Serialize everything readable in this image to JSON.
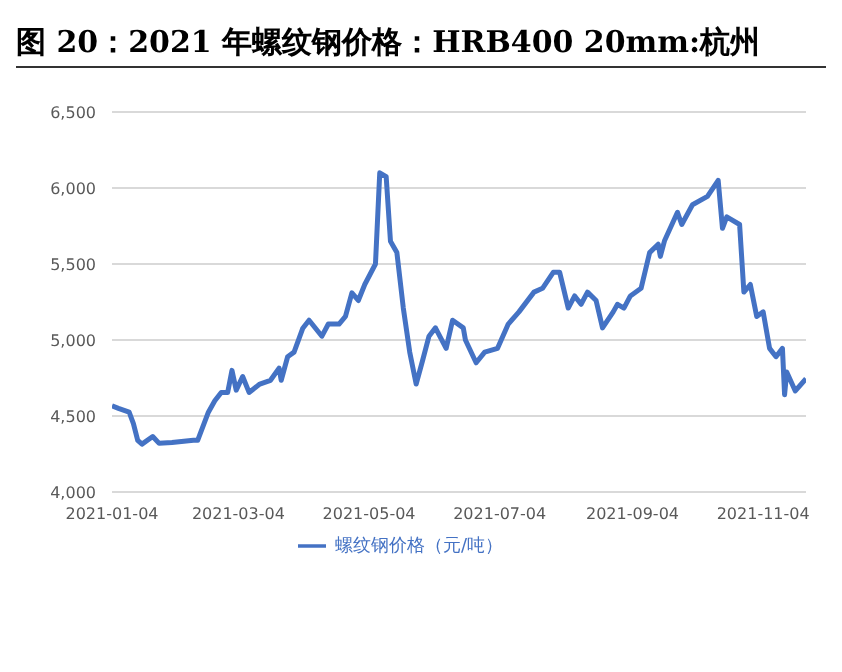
{
  "chart_data": {
    "type": "line",
    "title": "图 20：2021 年螺纹钢价格：HRB400 20mm:杭州",
    "x": [
      "2021-01-04",
      "2021-01-07",
      "2021-01-12",
      "2021-01-14",
      "2021-01-16",
      "2021-01-18",
      "2021-01-23",
      "2021-01-26",
      "2021-02-01",
      "2021-02-11",
      "2021-02-13",
      "2021-02-18",
      "2021-02-21",
      "2021-02-24",
      "2021-02-27",
      "2021-03-01",
      "2021-03-03",
      "2021-03-06",
      "2021-03-09",
      "2021-03-14",
      "2021-03-19",
      "2021-03-23",
      "2021-03-24",
      "2021-03-27",
      "2021-03-30",
      "2021-04-03",
      "2021-04-06",
      "2021-04-12",
      "2021-04-15",
      "2021-04-20",
      "2021-04-23",
      "2021-04-26",
      "2021-04-29",
      "2021-05-02",
      "2021-05-07",
      "2021-05-09",
      "2021-05-12",
      "2021-05-14",
      "2021-05-17",
      "2021-05-20",
      "2021-05-23",
      "2021-05-26",
      "2021-05-29",
      "2021-06-01",
      "2021-06-04",
      "2021-06-09",
      "2021-06-12",
      "2021-06-17",
      "2021-06-18",
      "2021-06-23",
      "2021-06-27",
      "2021-07-03",
      "2021-07-08",
      "2021-07-13",
      "2021-07-20",
      "2021-07-24",
      "2021-07-29",
      "2021-08-01",
      "2021-08-05",
      "2021-08-08",
      "2021-08-11",
      "2021-08-14",
      "2021-08-18",
      "2021-08-21",
      "2021-08-26",
      "2021-08-28",
      "2021-08-31",
      "2021-09-03",
      "2021-09-08",
      "2021-09-12",
      "2021-09-16",
      "2021-09-17",
      "2021-09-19",
      "2021-09-25",
      "2021-09-27",
      "2021-10-02",
      "2021-10-09",
      "2021-10-14",
      "2021-10-16",
      "2021-10-18",
      "2021-10-24",
      "2021-10-26",
      "2021-10-29",
      "2021-11-01",
      "2021-11-04",
      "2021-11-07",
      "2021-11-10",
      "2021-11-13",
      "2021-11-14",
      "2021-11-15",
      "2021-11-19",
      "2021-11-24"
    ],
    "series": [
      {
        "name": "螺纹钢价格（元/吨）",
        "color": "#4472c4",
        "values": [
          4567,
          4550,
          4525,
          4450,
          4340,
          4315,
          4365,
          4320,
          4325,
          4340,
          4340,
          4525,
          4600,
          4655,
          4655,
          4800,
          4670,
          4760,
          4655,
          4710,
          4735,
          4815,
          4735,
          4890,
          4920,
          5075,
          5130,
          5025,
          5105,
          5105,
          5155,
          5310,
          5260,
          5365,
          5500,
          6100,
          6075,
          5650,
          5575,
          5210,
          4920,
          4710,
          4865,
          5025,
          5080,
          4945,
          5130,
          5080,
          5000,
          4850,
          4920,
          4945,
          5105,
          5185,
          5315,
          5340,
          5445,
          5445,
          5210,
          5290,
          5235,
          5315,
          5260,
          5080,
          5185,
          5235,
          5210,
          5290,
          5340,
          5575,
          5630,
          5550,
          5655,
          5840,
          5760,
          5890,
          5945,
          6050,
          5735,
          5810,
          5760,
          5315,
          5365,
          5155,
          5185,
          4945,
          4890,
          4945,
          4640,
          4790,
          4665,
          4745
        ]
      }
    ],
    "xlim": [
      "2021-01-04",
      "2021-11-24"
    ],
    "xticks": [
      "2021-01-04",
      "2021-03-04",
      "2021-05-04",
      "2021-07-04",
      "2021-09-04",
      "2021-11-04"
    ],
    "ylim": [
      4000,
      6500
    ],
    "yticks": [
      {
        "value": 4000,
        "label": "4,000"
      },
      {
        "value": 4500,
        "label": "4,500"
      },
      {
        "value": 5000,
        "label": "5,000"
      },
      {
        "value": 5500,
        "label": "5,500"
      },
      {
        "value": 6000,
        "label": "6,000"
      },
      {
        "value": 6500,
        "label": "6,500"
      }
    ],
    "grid": "y",
    "legend": "bottom",
    "marker": "none",
    "line_style": "solid"
  }
}
